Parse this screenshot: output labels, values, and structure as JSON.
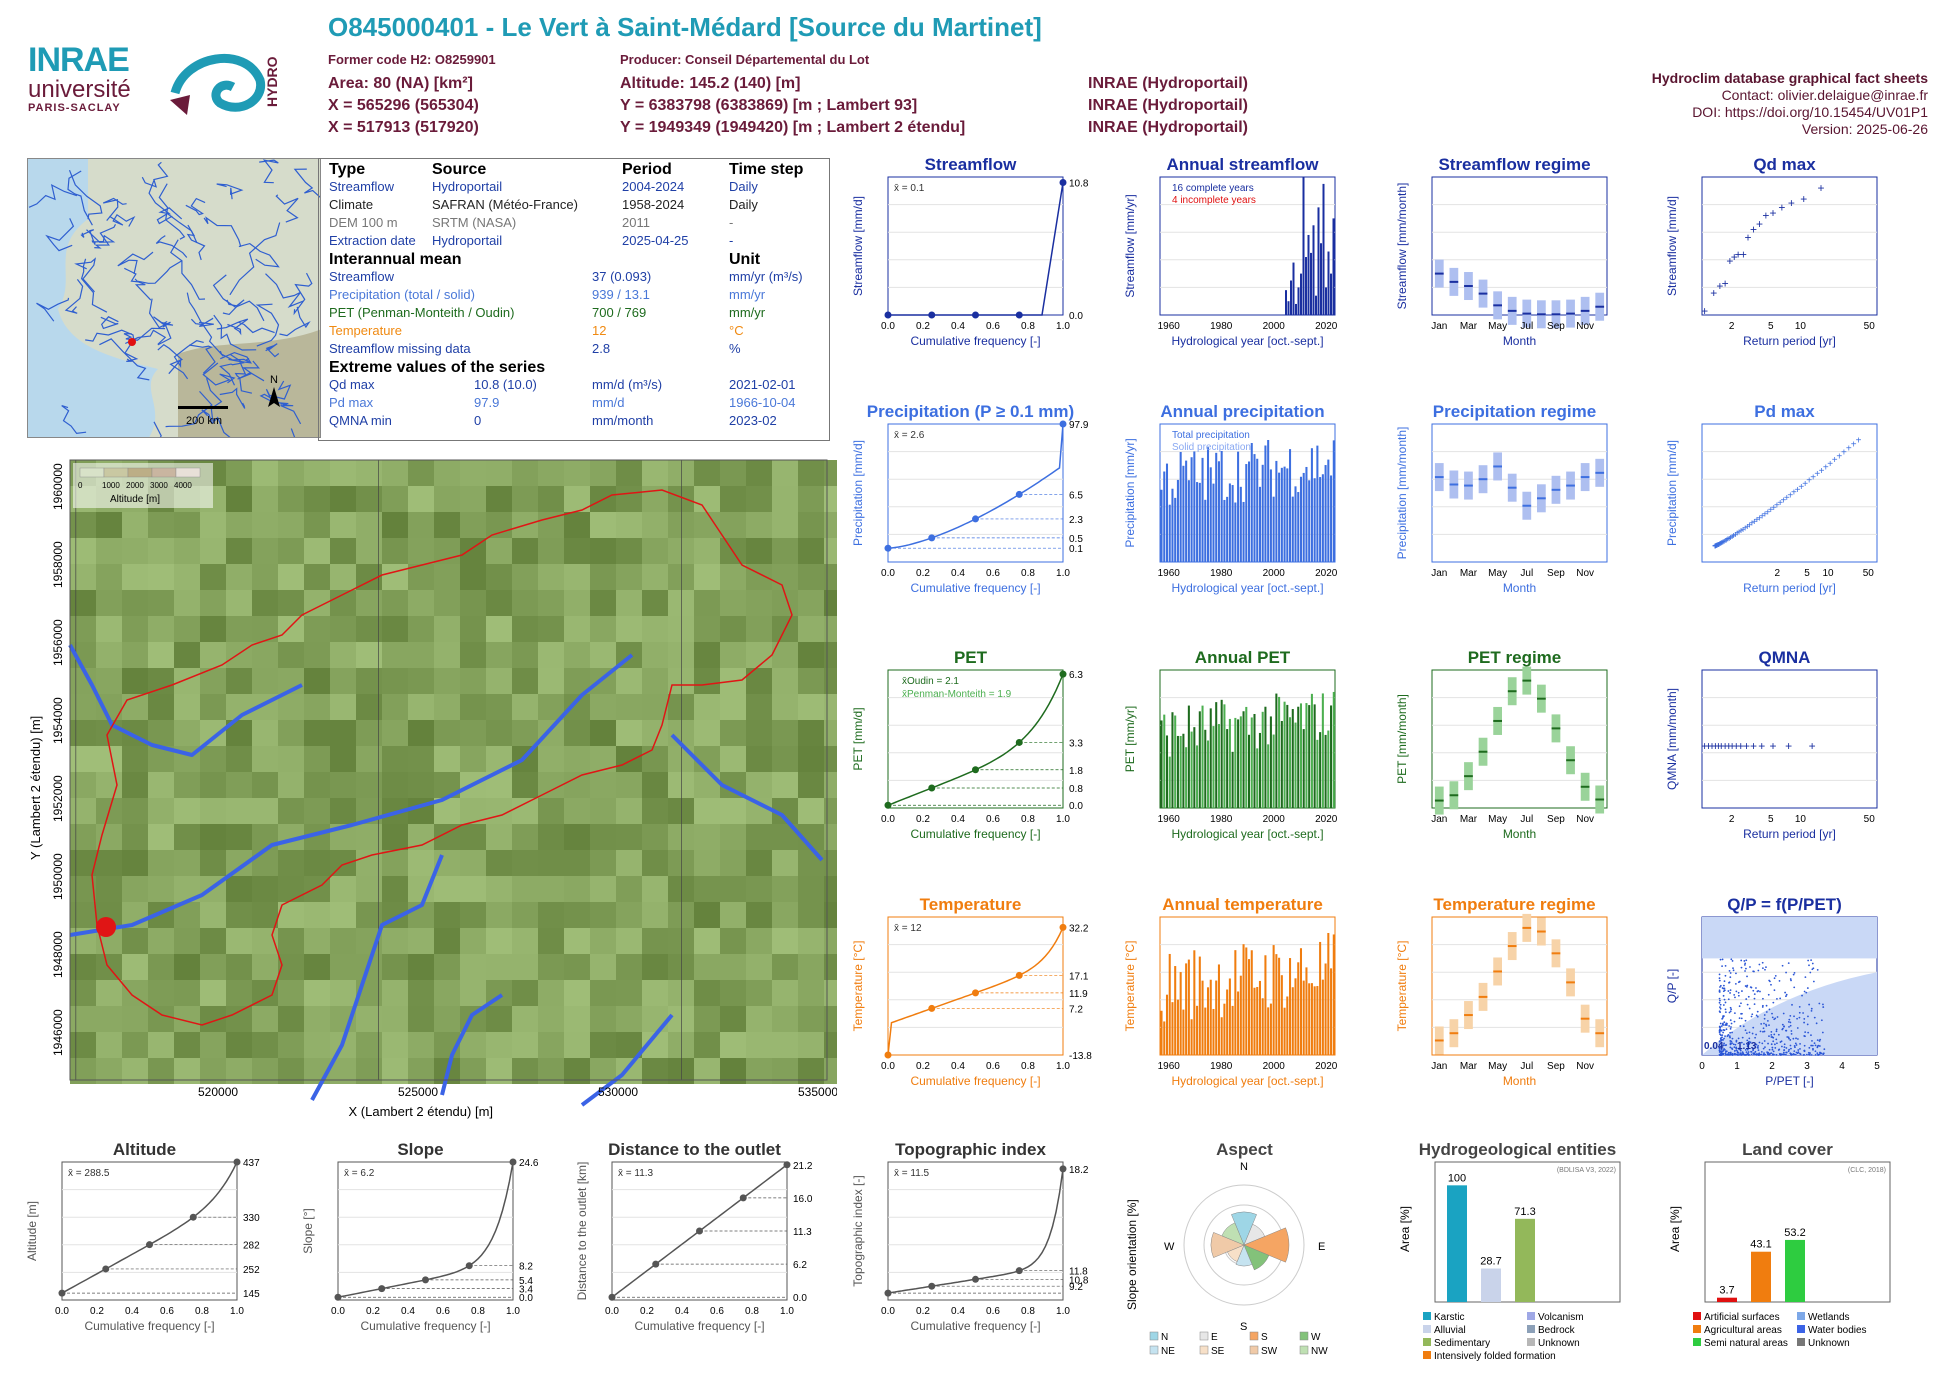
{
  "header": {
    "title": "O845000401 - Le Vert à Saint-Médard [Source du Martinet]",
    "former_code": "Former code H2: O8259901",
    "producer": "Producer: Conseil Départemental du Lot",
    "area": "Area: 80 (NA) [km²]",
    "altitude": "Altitude: 145.2 (140) [m]",
    "x93": "X = 565296 (565304)",
    "y93": "Y = 6383798 (6383869) [m ; Lambert 93]",
    "x2": "X = 517913 (517920)",
    "y2": "Y = 1949349 (1949420) [m ; Lambert 2 étendu]",
    "src1": "INRAE (Hydroportail)",
    "src2": "INRAE (Hydroportail)",
    "src3": "INRAE (Hydroportail)"
  },
  "logos": {
    "inrae": "INRAE",
    "univ": "université",
    "paris": "PARIS-SACLAY",
    "hydro": "HYDRO"
  },
  "right_info": {
    "line1": "Hydroclim database graphical fact sheets",
    "line2": "Contact: olivier.delaigue@inrae.fr",
    "line3": "DOI: https://doi.org/10.15454/UV01P1",
    "line4": "Version: 2025-06-26"
  },
  "locator_map": {
    "scale": "200 km",
    "north": "N"
  },
  "info_table": {
    "col_type": "Type",
    "col_source": "Source",
    "col_period": "Period",
    "col_step": "Time step",
    "rows": [
      {
        "type": "Streamflow",
        "source": "Hydroportail",
        "period": "2004-2024",
        "step": "Daily"
      },
      {
        "type": "Climate",
        "source": "SAFRAN (Météo-France)",
        "period": "1958-2024",
        "step": "Daily"
      },
      {
        "type": "DEM 100 m",
        "source": "SRTM (NASA)",
        "period": "2011",
        "step": "-"
      },
      {
        "type": "Extraction date",
        "source": "Hydroportail",
        "period": "2025-04-25",
        "step": "-"
      }
    ],
    "interannual_title": "Interannual mean",
    "unit_title": "Unit",
    "mean_rows": [
      {
        "name": "Streamflow",
        "value": "37 (0.093)",
        "unit": "mm/yr (m³/s)"
      },
      {
        "name": "Precipitation (total / solid)",
        "value": "939 / 13.1",
        "unit": "mm/yr"
      },
      {
        "name": "PET (Penman-Monteith / Oudin)",
        "value": "700 / 769",
        "unit": "mm/yr"
      },
      {
        "name": "Temperature",
        "value": "12",
        "unit": "°C"
      },
      {
        "name": "Streamflow missing data",
        "value": "2.8",
        "unit": "%"
      }
    ],
    "extreme_title": "Extreme values of the series",
    "extreme_rows": [
      {
        "name": "Qd max",
        "value": "10.8 (10.0)",
        "unit": "mm/d (m³/s)",
        "date": "2021-02-01"
      },
      {
        "name": "Pd max",
        "value": "97.9",
        "unit": "mm/d",
        "date": "1966-10-04"
      },
      {
        "name": "QMNA min",
        "value": "0",
        "unit": "mm/month",
        "date": "2023-02"
      }
    ]
  },
  "basin_map": {
    "xlabel": "X (Lambert 2 étendu) [m]",
    "ylabel": "Y (Lambert 2 étendu) [m]",
    "xticks": [
      "520000",
      "525000",
      "530000",
      "535000"
    ],
    "yticks": [
      "1960000",
      "1958000",
      "1956000",
      "1954000",
      "1952000",
      "1950000",
      "1948000",
      "1946000"
    ],
    "legend_title": "Altitude [m]",
    "legend_ticks": [
      "0",
      "1000",
      "2000",
      "3000",
      "4000"
    ]
  },
  "panels": {
    "streamflow": {
      "title": "Streamflow",
      "ylabel": "Streamflow [mm/d]",
      "xlabel": "Cumulative frequency [-]",
      "mean": "x̄ = 0.1",
      "right": [
        "10.8",
        "0.0"
      ],
      "color": "#1a2fa0"
    },
    "annual_streamflow": {
      "title": "Annual streamflow",
      "ylabel": "Streamflow [mm/yr]",
      "xlabel": "Hydrological year [oct.-sept.]",
      "leg1": "16 complete years",
      "leg2": "4 incomplete years",
      "color": "#1a2fa0"
    },
    "streamflow_regime": {
      "title": "Streamflow regime",
      "ylabel": "Streamflow [mm/month]",
      "xlabel": "Month",
      "color": "#1a2fa0"
    },
    "qd_max": {
      "title": "Qd max",
      "ylabel": "Streamflow [mm/d]",
      "xlabel": "Return period [yr]",
      "color": "#1a2fa0"
    },
    "precipitation": {
      "title": "Precipitation (P ≥ 0.1 mm)",
      "ylabel": "Precipitation [mm/d]",
      "xlabel": "Cumulative frequency [-]",
      "mean": "x̄ = 2.6",
      "right": [
        "97.9",
        "6.5",
        "2.3",
        "0.5",
        "0.1"
      ],
      "color": "#3d6fe0"
    },
    "annual_precipitation": {
      "title": "Annual precipitation",
      "ylabel": "Precipitation [mm/yr]",
      "xlabel": "Hydrological year [oct.-sept.]",
      "leg1": "Total precipitation",
      "leg2": "Solid precipitation",
      "color": "#3d6fe0"
    },
    "precipitation_regime": {
      "title": "Precipitation regime",
      "ylabel": "Precipitation [mm/month]",
      "xlabel": "Month",
      "color": "#3d6fe0"
    },
    "pd_max": {
      "title": "Pd max",
      "ylabel": "Precipitation [mm/d]",
      "xlabel": "Return period [yr]",
      "color": "#3d6fe0"
    },
    "pet": {
      "title": "PET",
      "ylabel": "PET [mm/d]",
      "xlabel": "Cumulative frequency [-]",
      "mean1": "x̄Oudin = 2.1",
      "mean2": "x̄Penman-Monteith = 1.9",
      "right": [
        "6.3",
        "3.3",
        "1.8",
        "0.8",
        "0.0"
      ],
      "color": "#1e6b1e"
    },
    "annual_pet": {
      "title": "Annual PET",
      "ylabel": "PET [mm/yr]",
      "xlabel": "Hydrological year [oct.-sept.]",
      "color": "#1e6b1e"
    },
    "pet_regime": {
      "title": "PET regime",
      "ylabel": "PET [mm/month]",
      "xlabel": "Month",
      "color": "#1e6b1e"
    },
    "qmna": {
      "title": "QMNA",
      "ylabel": "QMNA [mm/month]",
      "xlabel": "Return period [yr]",
      "color": "#1a2fa0"
    },
    "temperature": {
      "title": "Temperature",
      "ylabel": "Temperature [°C]",
      "xlabel": "Cumulative frequency [-]",
      "mean": "x̄ = 12",
      "right": [
        "32.2",
        "17.1",
        "11.9",
        "7.2",
        "-13.8"
      ],
      "color": "#f07d0f"
    },
    "annual_temperature": {
      "title": "Annual temperature",
      "ylabel": "Temperature [°C]",
      "xlabel": "Hydrological year [oct.-sept.]",
      "color": "#f07d0f"
    },
    "temperature_regime": {
      "title": "Temperature regime",
      "ylabel": "Temperature [°C]",
      "xlabel": "Month",
      "color": "#f07d0f"
    },
    "qp": {
      "title": "Q/P = f(P/PET)",
      "ylabel": "Q/P [-]",
      "xlabel": "P/PET [-]",
      "lab1": "0.04",
      "lab2": "1.13",
      "color": "#1a2fa0"
    },
    "altitude": {
      "title": "Altitude",
      "ylabel": "Altitude [m]",
      "xlabel": "Cumulative frequency [-]",
      "mean": "x̄ = 288.5",
      "right": [
        "437",
        "330",
        "282",
        "252",
        "145"
      ]
    },
    "slope": {
      "title": "Slope",
      "ylabel": "Slope [°]",
      "xlabel": "Cumulative frequency [-]",
      "mean": "x̄ = 6.2",
      "right": [
        "24.6",
        "8.2",
        "5.4",
        "3.4",
        "0.0"
      ]
    },
    "distance": {
      "title": "Distance to the outlet",
      "ylabel": "Distance to the outlet [km]",
      "xlabel": "Cumulative frequency [-]",
      "mean": "x̄ = 11.3",
      "right": [
        "21.2",
        "16.0",
        "11.3",
        "6.2",
        "0.0"
      ]
    },
    "topo": {
      "title": "Topographic index",
      "ylabel": "Topographic index [-]",
      "xlabel": "Cumulative frequency [-]",
      "mean": "x̄ = 11.5",
      "right": [
        "18.2",
        "11.8",
        "10.8",
        "9.2"
      ]
    },
    "aspect": {
      "title": "Aspect",
      "ylabel": "Slope orientation [%]",
      "legend": [
        "N",
        "E",
        "S",
        "W",
        "NE",
        "SE",
        "SW",
        "NW"
      ]
    },
    "hydrogeo": {
      "title": "Hydrogeological entities",
      "ylabel": "Area [%]",
      "source": "(BDLISA V3, 2022)",
      "legend": [
        "Karstic",
        "Volcanism",
        "Alluvial",
        "Bedrock",
        "Sedimentary",
        "Unknown",
        "Intensively folded formation"
      ]
    },
    "landcover": {
      "title": "Land cover",
      "ylabel": "Area [%]",
      "source": "(CLC, 2018)",
      "legend": [
        "Artificial surfaces",
        "Wetlands",
        "Agricultural areas",
        "Water bodies",
        "Semi natural areas",
        "Unknown"
      ]
    }
  },
  "chart_data": [
    {
      "type": "bar",
      "title": "Annual streamflow",
      "x": [
        2005,
        2006,
        2007,
        2008,
        2009,
        2010,
        2011,
        2012,
        2013,
        2014,
        2015,
        2016,
        2017,
        2018,
        2019,
        2020,
        2021,
        2022,
        2023,
        2024
      ],
      "values": [
        18,
        10,
        25,
        38,
        8,
        20,
        30,
        100,
        42,
        58,
        45,
        65,
        14,
        78,
        52,
        95,
        20,
        46,
        30,
        70
      ],
      "ylim": [
        0,
        100
      ],
      "xlim": [
        1955,
        2025
      ]
    },
    {
      "type": "bar",
      "title": "Streamflow regime",
      "categories": [
        "Jan",
        "Feb",
        "Mar",
        "Apr",
        "May",
        "Jun",
        "Jul",
        "Aug",
        "Sep",
        "Oct",
        "Nov",
        "Dec"
      ],
      "values": [
        6,
        4.8,
        4.2,
        3.1,
        1.4,
        0.6,
        0.2,
        0.1,
        0.1,
        0.2,
        0.6,
        1.2
      ],
      "ylim": [
        0,
        20
      ]
    },
    {
      "type": "scatter",
      "title": "Qd max",
      "x": [
        1.05,
        1.3,
        1.5,
        1.7,
        1.9,
        2.1,
        2.3,
        2.6,
        2.9,
        3.3,
        3.8,
        4.4,
        5.2,
        6.4,
        8,
        10.7,
        16
      ],
      "values": [
        0.3,
        1.6,
        2.1,
        2.3,
        3.9,
        4.2,
        4.4,
        4.4,
        5.6,
        6.2,
        6.6,
        7.2,
        7.4,
        7.8,
        8.1,
        8.4,
        9.2
      ],
      "ylim": [
        0,
        10
      ]
    },
    {
      "type": "bar",
      "title": "Precipitation regime",
      "categories": [
        "Jan",
        "Feb",
        "Mar",
        "Apr",
        "May",
        "Jun",
        "Jul",
        "Aug",
        "Sep",
        "Oct",
        "Nov",
        "Dec"
      ],
      "values": [
        80,
        73,
        72,
        78,
        90,
        70,
        53,
        60,
        68,
        72,
        80,
        84
      ],
      "ylim": [
        0,
        130
      ]
    },
    {
      "type": "bar",
      "title": "Annual PET",
      "ylim": [
        530,
        860
      ]
    },
    {
      "type": "bar",
      "title": "PET regime",
      "categories": [
        "Jan",
        "Feb",
        "Mar",
        "Apr",
        "May",
        "Jun",
        "Jul",
        "Aug",
        "Sep",
        "Oct",
        "Nov",
        "Dec"
      ],
      "values": [
        17,
        22,
        40,
        63,
        92,
        120,
        130,
        113,
        85,
        55,
        30,
        18
      ],
      "ylim": [
        10,
        140
      ]
    },
    {
      "type": "scatter",
      "title": "QMNA",
      "x": [
        1.05,
        1.15,
        1.25,
        1.35,
        1.45,
        1.55,
        1.7,
        1.85,
        2,
        2.2,
        2.45,
        2.8,
        3.3,
        4,
        5.2,
        7.5,
        13
      ],
      "values": [
        0,
        0,
        0,
        0,
        0,
        0,
        0,
        0,
        0,
        0,
        0,
        0,
        0,
        0,
        0,
        0,
        0
      ]
    },
    {
      "type": "bar",
      "title": "Temperature regime",
      "categories": [
        "Jan",
        "Feb",
        "Mar",
        "Apr",
        "May",
        "Jun",
        "Jul",
        "Aug",
        "Sep",
        "Oct",
        "Nov",
        "Dec"
      ],
      "values": [
        5,
        6,
        8.5,
        11,
        14.5,
        18,
        20.5,
        20,
        17,
        13,
        8,
        6
      ],
      "ylim": [
        3,
        22
      ]
    },
    {
      "type": "bar",
      "title": "Hydrogeological entities",
      "categories": [
        "Karstic",
        "Alluvial",
        "Sedimentary"
      ],
      "values": [
        100,
        28.7,
        71.3
      ],
      "ylim": [
        0,
        120
      ]
    },
    {
      "type": "bar",
      "title": "Land cover",
      "categories": [
        "Artificial surfaces",
        "Agricultural areas",
        "Semi natural areas"
      ],
      "values": [
        3.7,
        43.1,
        53.2
      ],
      "ylim": [
        0,
        120
      ]
    }
  ]
}
